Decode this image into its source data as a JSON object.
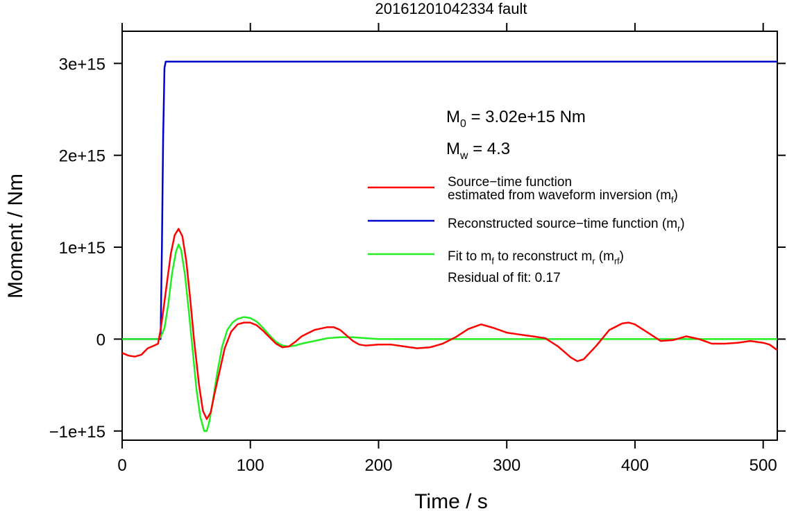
{
  "chart_data": {
    "type": "line",
    "title": "20161201042334 fault",
    "xlabel": "Time / s",
    "ylabel": "Moment / Nm",
    "xlim": [
      0,
      511
    ],
    "ylim": [
      -1100000000000000.0,
      3350000000000000.0
    ],
    "x_ticks": [
      0,
      100,
      200,
      300,
      400,
      500
    ],
    "x_tick_labels": [
      "0",
      "100",
      "200",
      "300",
      "400",
      "500"
    ],
    "y_ticks": [
      -1000000000000000.0,
      0,
      1000000000000000.0,
      2000000000000000.0,
      3000000000000000.0
    ],
    "y_tick_labels": [
      "−1e+15",
      "0",
      "1e+15",
      "2e+15",
      "3e+15"
    ],
    "grid": false,
    "legend_placement": "right",
    "annotations": {
      "m0": {
        "main": "M",
        "sub": "0",
        "rest": " = 3.02e+15 Nm"
      },
      "mw": {
        "main": "M",
        "sub": "w",
        "rest": " = 4.3"
      },
      "residual": "Residual of fit: 0.17"
    },
    "series": [
      {
        "key": "stf",
        "color": "#ff0000",
        "legend": [
          {
            "main": "Source−time function"
          },
          {
            "main": "estimated from waveform inversion (m",
            "sub": "f",
            "tail": ")"
          }
        ],
        "x": [
          0,
          5,
          10,
          15,
          20,
          25,
          28,
          30,
          32,
          35,
          38,
          41,
          44,
          47,
          50,
          53,
          56,
          60,
          63,
          66,
          69,
          72,
          76,
          80,
          85,
          90,
          95,
          100,
          105,
          110,
          115,
          120,
          125,
          130,
          135,
          140,
          150,
          160,
          165,
          170,
          175,
          180,
          185,
          190,
          200,
          210,
          220,
          230,
          240,
          250,
          260,
          270,
          280,
          290,
          300,
          310,
          320,
          330,
          340,
          350,
          355,
          360,
          370,
          380,
          390,
          395,
          400,
          410,
          420,
          430,
          440,
          450,
          460,
          470,
          480,
          490,
          500,
          505,
          511
        ],
        "y": [
          -150000000000000.0,
          -180000000000000.0,
          -190000000000000.0,
          -170000000000000.0,
          -100000000000000.0,
          -70000000000000.0,
          -50000000000000.0,
          100000000000000.0,
          300000000000000.0,
          620000000000000.0,
          930000000000000.0,
          1130000000000000.0,
          1200000000000000.0,
          1120000000000000.0,
          850000000000000.0,
          450000000000000.0,
          0.0,
          -500000000000000.0,
          -780000000000000.0,
          -870000000000000.0,
          -800000000000000.0,
          -600000000000000.0,
          -350000000000000.0,
          -100000000000000.0,
          80000000000000.0,
          160000000000000.0,
          180000000000000.0,
          180000000000000.0,
          150000000000000.0,
          90000000000000.0,
          20000000000000.0,
          -50000000000000.0,
          -90000000000000.0,
          -80000000000000.0,
          -30000000000000.0,
          30000000000000.0,
          100000000000000.0,
          130000000000000.0,
          130000000000000.0,
          100000000000000.0,
          40000000000000.0,
          -20000000000000.0,
          -60000000000000.0,
          -70000000000000.0,
          -60000000000000.0,
          -60000000000000.0,
          -80000000000000.0,
          -100000000000000.0,
          -90000000000000.0,
          -50000000000000.0,
          20000000000000.0,
          110000000000000.0,
          160000000000000.0,
          120000000000000.0,
          70000000000000.0,
          50000000000000.0,
          30000000000000.0,
          10000000000000.0,
          -80000000000000.0,
          -200000000000000.0,
          -240000000000000.0,
          -220000000000000.0,
          -70000000000000.0,
          100000000000000.0,
          170000000000000.0,
          180000000000000.0,
          160000000000000.0,
          70000000000000.0,
          -20000000000000.0,
          -10000000000000.0,
          30000000000000.0,
          0.0,
          -50000000000000.0,
          -50000000000000.0,
          -40000000000000.0,
          -20000000000000.0,
          -40000000000000.0,
          -60000000000000.0,
          -120000000000000.0
        ]
      },
      {
        "key": "reconstructed",
        "color": "#0000cc",
        "legend": [
          {
            "main": "Reconstructed source−time function (m",
            "sub": "r",
            "tail": ")"
          }
        ],
        "x": [
          0,
          30,
          31,
          32,
          33,
          34,
          511
        ],
        "y": [
          0,
          0,
          1000000000000000.0,
          2200000000000000.0,
          2950000000000000.0,
          3020000000000000.0,
          3020000000000000.0
        ]
      },
      {
        "key": "fit",
        "color": "#22ee22",
        "legend": [
          {
            "main": "Fit to m",
            "sub": "f",
            "mid": " to reconstruct m",
            "sub2": "r",
            "mid2": " (m",
            "sub3": "rf",
            "tail": ")"
          }
        ],
        "x": [
          0,
          28,
          30,
          33,
          36,
          39,
          42,
          44,
          46,
          49,
          52,
          55,
          58,
          61,
          64,
          66,
          68,
          71,
          74,
          78,
          82,
          86,
          90,
          95,
          100,
          105,
          110,
          115,
          120,
          125,
          130,
          135,
          140,
          150,
          160,
          170,
          180,
          190,
          200,
          210,
          220,
          230,
          260,
          300,
          400,
          511
        ],
        "y": [
          0,
          0,
          20000000000000.0,
          120000000000000.0,
          380000000000000.0,
          720000000000000.0,
          950000000000000.0,
          1030000000000000.0,
          970000000000000.0,
          700000000000000.0,
          300000000000000.0,
          -120000000000000.0,
          -550000000000000.0,
          -850000000000000.0,
          -1000000000000000.0,
          -1000000000000000.0,
          -900000000000000.0,
          -650000000000000.0,
          -380000000000000.0,
          -80000000000000.0,
          100000000000000.0,
          180000000000000.0,
          220000000000000.0,
          240000000000000.0,
          230000000000000.0,
          190000000000000.0,
          120000000000000.0,
          40000000000000.0,
          -30000000000000.0,
          -70000000000000.0,
          -80000000000000.0,
          -70000000000000.0,
          -50000000000000.0,
          -20000000000000.0,
          10000000000000.0,
          20000000000000.0,
          20000000000000.0,
          10000000000000.0,
          0.0,
          0.0,
          0.0,
          0.0,
          0.0,
          0.0,
          0.0,
          0.0
        ]
      }
    ]
  }
}
